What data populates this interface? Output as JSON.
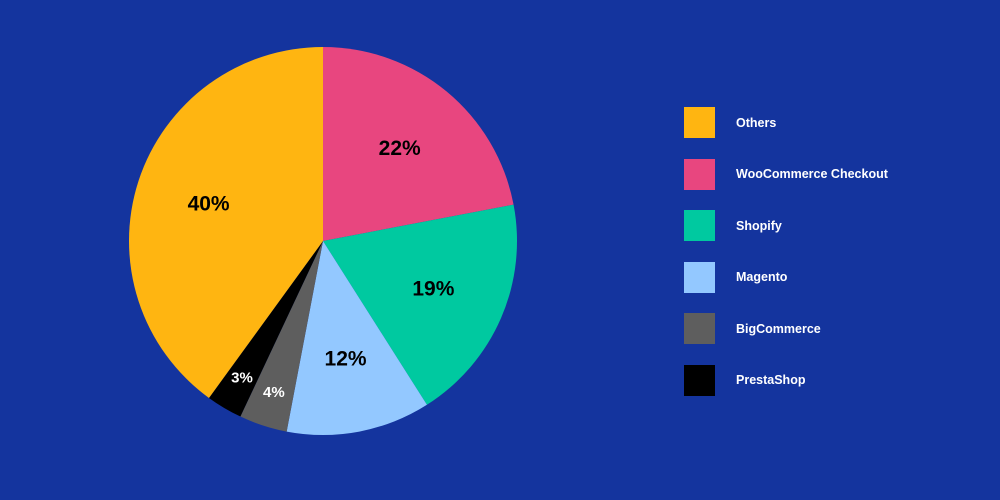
{
  "chart_data": {
    "type": "pie",
    "title": "",
    "background_color": "#14349e",
    "start_angle_deg": 0,
    "direction": "clockwise",
    "legend_placement": "right",
    "slices": [
      {
        "name": "WooCommerce Checkout",
        "value": 22,
        "label": "22%",
        "color": "#e8467f",
        "label_color": "#000000"
      },
      {
        "name": "Shopify",
        "value": 19,
        "label": "19%",
        "color": "#00c9a0",
        "label_color": "#000000"
      },
      {
        "name": "Magento",
        "value": 12,
        "label": "12%",
        "color": "#93c8ff",
        "label_color": "#000000"
      },
      {
        "name": "BigCommerce",
        "value": 4,
        "label": "4%",
        "color": "#5e5e5e",
        "label_color": "#ffffff"
      },
      {
        "name": "PrestaShop",
        "value": 3,
        "label": "3%",
        "color": "#000000",
        "label_color": "#ffffff"
      },
      {
        "name": "Others",
        "value": 40,
        "label": "40%",
        "color": "#ffb511",
        "label_color": "#000000"
      }
    ],
    "legend": [
      {
        "name": "Others",
        "color": "#ffb511"
      },
      {
        "name": "WooCommerce Checkout",
        "color": "#e8467f"
      },
      {
        "name": "Shopify",
        "color": "#00c9a0"
      },
      {
        "name": "Magento",
        "color": "#93c8ff"
      },
      {
        "name": "BigCommerce",
        "color": "#5e5e5e"
      },
      {
        "name": "PrestaShop",
        "color": "#000000"
      }
    ]
  }
}
